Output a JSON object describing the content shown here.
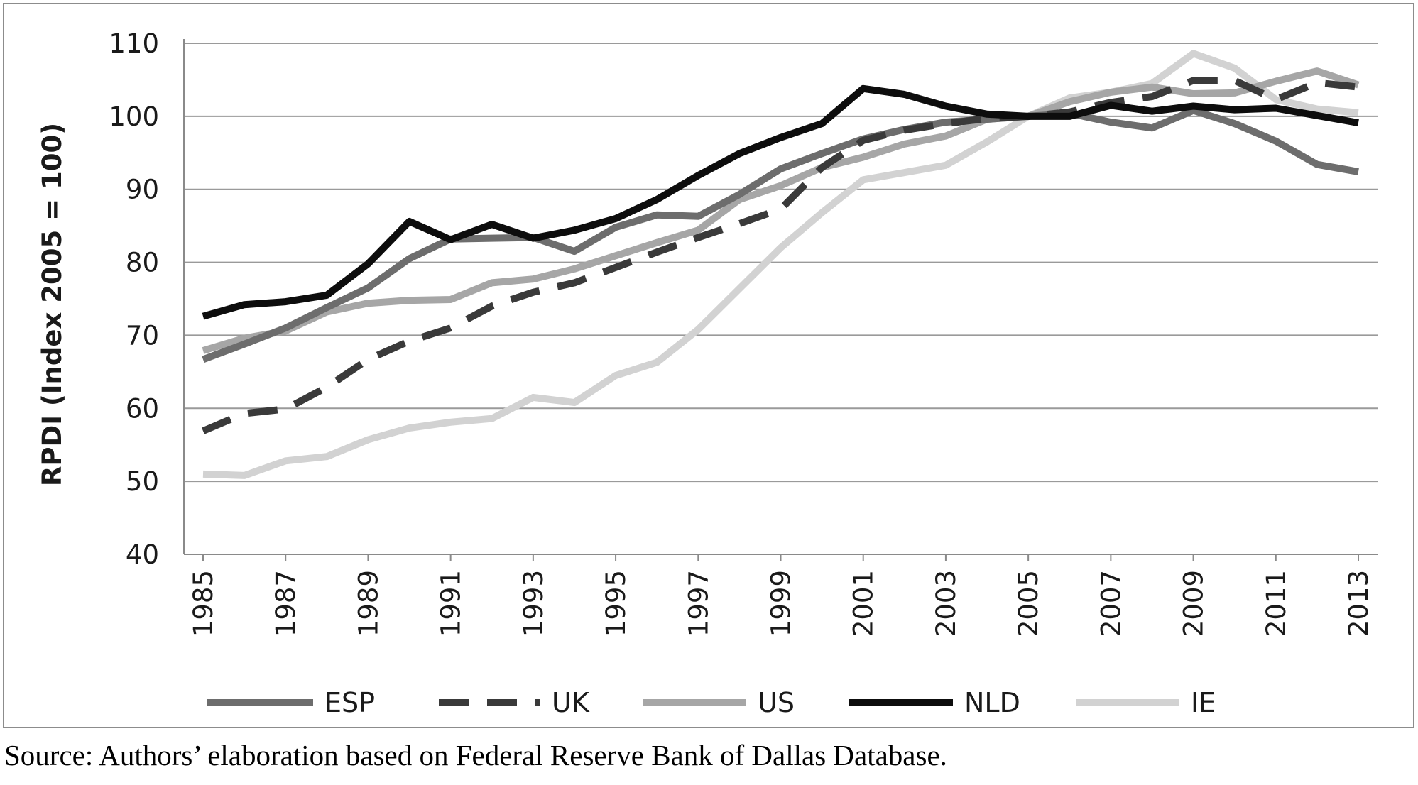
{
  "chart_data": {
    "type": "line",
    "title": "",
    "xlabel": "",
    "ylabel": "RPDI (Index 2005 = 100)",
    "ylim": [
      40,
      110
    ],
    "yticks": [
      "40",
      "50",
      "60",
      "70",
      "80",
      "90",
      "100",
      "110"
    ],
    "xtick_labels": [
      "1985",
      "1987",
      "1989",
      "1991",
      "1993",
      "1995",
      "1997",
      "1999",
      "2001",
      "2003",
      "2005",
      "2007",
      "2009",
      "2011",
      "2013"
    ],
    "x": [
      1985,
      1986,
      1987,
      1988,
      1989,
      1990,
      1991,
      1992,
      1993,
      1994,
      1995,
      1996,
      1997,
      1998,
      1999,
      2000,
      2001,
      2002,
      2003,
      2004,
      2005,
      2006,
      2007,
      2008,
      2009,
      2010,
      2011,
      2012,
      2013
    ],
    "grid": "horizontal",
    "legend_position": "bottom",
    "series": [
      {
        "name": "ESP",
        "color": "#6d6d6d",
        "dash": "solid",
        "values": [
          66.7,
          68.8,
          71.0,
          73.8,
          76.5,
          80.5,
          83.2,
          83.3,
          83.4,
          81.5,
          84.8,
          86.5,
          86.3,
          89.3,
          92.8,
          94.9,
          96.9,
          98.2,
          99.2,
          99.6,
          100.0,
          100.4,
          99.2,
          98.4,
          100.8,
          99.0,
          96.6,
          93.4,
          92.4
        ]
      },
      {
        "name": "UK",
        "color": "#3a3a3a",
        "dash": "dashed",
        "values": [
          56.9,
          59.3,
          59.9,
          62.9,
          66.7,
          69.2,
          71.0,
          74.0,
          75.9,
          77.2,
          79.3,
          81.4,
          83.4,
          85.3,
          87.3,
          93.0,
          96.7,
          98.1,
          99.0,
          99.7,
          100.0,
          100.6,
          101.9,
          102.7,
          104.9,
          104.9,
          102.3,
          104.6,
          104.0
        ]
      },
      {
        "name": "US",
        "color": "#a6a6a6",
        "dash": "solid",
        "values": [
          67.9,
          69.6,
          70.6,
          73.2,
          74.4,
          74.8,
          74.9,
          77.2,
          77.7,
          79.1,
          80.9,
          82.7,
          84.4,
          88.6,
          90.5,
          93.0,
          94.4,
          96.2,
          97.3,
          99.6,
          100.0,
          102.0,
          103.3,
          104.0,
          103.1,
          103.2,
          104.8,
          106.2,
          104.3
        ]
      },
      {
        "name": "NLD",
        "color": "#0d0d0d",
        "dash": "solid",
        "values": [
          72.6,
          74.2,
          74.6,
          75.5,
          79.8,
          85.6,
          83.1,
          85.2,
          83.3,
          84.4,
          86.0,
          88.6,
          91.9,
          94.9,
          97.1,
          99.0,
          103.8,
          103.0,
          101.4,
          100.3,
          100.0,
          100.0,
          101.5,
          100.7,
          101.4,
          100.9,
          101.1,
          100.1,
          99.1
        ]
      },
      {
        "name": "IE",
        "color": "#d2d2d2",
        "dash": "solid",
        "values": [
          51.0,
          50.8,
          52.8,
          53.4,
          55.7,
          57.3,
          58.1,
          58.6,
          61.5,
          60.8,
          64.5,
          66.3,
          70.8,
          76.4,
          82.0,
          86.8,
          91.3,
          92.3,
          93.3,
          96.5,
          100.0,
          102.5,
          103.3,
          104.5,
          108.6,
          106.6,
          102.3,
          101.0,
          100.5
        ]
      }
    ]
  },
  "source_note": "Source: Authors’ elaboration based on Federal Reserve Bank of Dallas Database."
}
